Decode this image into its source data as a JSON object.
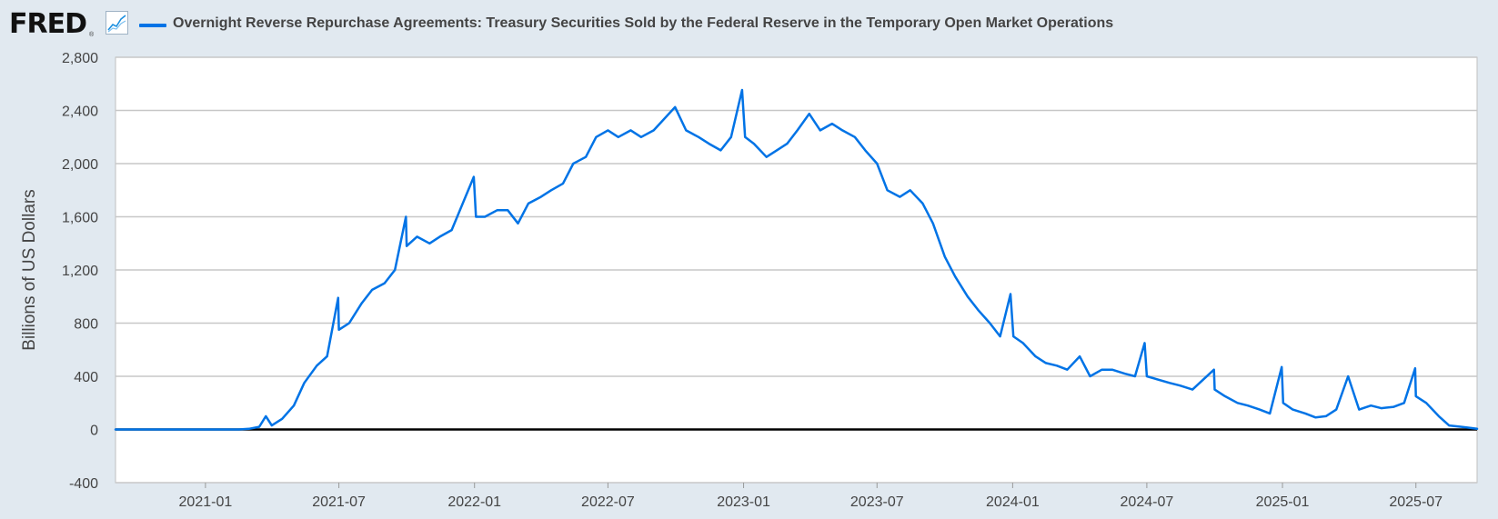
{
  "header": {
    "logo_text": "FRED",
    "logo_mark": "®",
    "graph_icon": "line-chart-icon",
    "legend_label": "Overnight Reverse Repurchase Agreements: Treasury Securities Sold by the Federal Reserve in the Temporary Open Market Operations"
  },
  "chart_data": {
    "type": "line",
    "title": "",
    "xlabel": "",
    "ylabel": "Billions of US Dollars",
    "ylim": [
      -400,
      2800
    ],
    "xlim": [
      "2020-09-01",
      "2025-09-22"
    ],
    "yticks": [
      -400,
      0,
      400,
      800,
      1200,
      1600,
      2000,
      2400,
      2800
    ],
    "ytick_labels": [
      "-400",
      "0",
      "400",
      "800",
      "1,200",
      "1,600",
      "2,000",
      "2,400",
      "2,800"
    ],
    "xticks": [
      "2021-01-01",
      "2021-07-01",
      "2022-01-01",
      "2022-07-01",
      "2023-01-01",
      "2023-07-01",
      "2024-01-01",
      "2024-07-01",
      "2025-01-01",
      "2025-07-01"
    ],
    "xtick_labels": [
      "2021-01",
      "2021-07",
      "2022-01",
      "2022-07",
      "2023-01",
      "2023-07",
      "2024-01",
      "2024-07",
      "2025-01",
      "2025-07"
    ],
    "grid": "horizontal",
    "legend": "top-left",
    "colors": {
      "series": "#0073e6",
      "grid": "#c7c7c7",
      "zero_line": "#000000",
      "plot_bg": "#ffffff",
      "page_bg": "#e1e9f0"
    },
    "series": [
      {
        "name": "Overnight Reverse Repurchase Agreements: Treasury Securities Sold by the Federal Reserve in the Temporary Open Market Operations",
        "points": [
          [
            "2020-09-01",
            0
          ],
          [
            "2021-01-01",
            0
          ],
          [
            "2021-02-15",
            0
          ],
          [
            "2021-03-01",
            5
          ],
          [
            "2021-03-15",
            20
          ],
          [
            "2021-03-24",
            100
          ],
          [
            "2021-04-01",
            30
          ],
          [
            "2021-04-15",
            80
          ],
          [
            "2021-05-01",
            180
          ],
          [
            "2021-05-15",
            350
          ],
          [
            "2021-06-01",
            480
          ],
          [
            "2021-06-15",
            550
          ],
          [
            "2021-06-30",
            990
          ],
          [
            "2021-07-01",
            750
          ],
          [
            "2021-07-15",
            800
          ],
          [
            "2021-08-01",
            950
          ],
          [
            "2021-08-15",
            1050
          ],
          [
            "2021-09-01",
            1100
          ],
          [
            "2021-09-15",
            1200
          ],
          [
            "2021-09-30",
            1600
          ],
          [
            "2021-10-01",
            1380
          ],
          [
            "2021-10-15",
            1450
          ],
          [
            "2021-11-01",
            1400
          ],
          [
            "2021-11-15",
            1450
          ],
          [
            "2021-12-01",
            1500
          ],
          [
            "2021-12-31",
            1900
          ],
          [
            "2022-01-03",
            1600
          ],
          [
            "2022-01-15",
            1600
          ],
          [
            "2022-02-01",
            1650
          ],
          [
            "2022-02-15",
            1650
          ],
          [
            "2022-03-01",
            1550
          ],
          [
            "2022-03-15",
            1700
          ],
          [
            "2022-04-01",
            1750
          ],
          [
            "2022-04-15",
            1800
          ],
          [
            "2022-05-01",
            1850
          ],
          [
            "2022-05-15",
            2000
          ],
          [
            "2022-06-01",
            2050
          ],
          [
            "2022-06-15",
            2200
          ],
          [
            "2022-07-01",
            2250
          ],
          [
            "2022-07-15",
            2200
          ],
          [
            "2022-08-01",
            2250
          ],
          [
            "2022-08-15",
            2200
          ],
          [
            "2022-09-01",
            2250
          ],
          [
            "2022-09-30",
            2425
          ],
          [
            "2022-10-15",
            2250
          ],
          [
            "2022-11-01",
            2200
          ],
          [
            "2022-11-15",
            2150
          ],
          [
            "2022-12-01",
            2100
          ],
          [
            "2022-12-15",
            2200
          ],
          [
            "2022-12-30",
            2554
          ],
          [
            "2023-01-03",
            2200
          ],
          [
            "2023-01-15",
            2150
          ],
          [
            "2023-02-01",
            2050
          ],
          [
            "2023-02-15",
            2100
          ],
          [
            "2023-03-01",
            2150
          ],
          [
            "2023-03-15",
            2250
          ],
          [
            "2023-03-31",
            2375
          ],
          [
            "2023-04-15",
            2250
          ],
          [
            "2023-05-01",
            2300
          ],
          [
            "2023-05-15",
            2250
          ],
          [
            "2023-06-01",
            2200
          ],
          [
            "2023-06-15",
            2100
          ],
          [
            "2023-07-01",
            2000
          ],
          [
            "2023-07-15",
            1800
          ],
          [
            "2023-08-01",
            1750
          ],
          [
            "2023-08-15",
            1800
          ],
          [
            "2023-09-01",
            1700
          ],
          [
            "2023-09-15",
            1550
          ],
          [
            "2023-10-01",
            1300
          ],
          [
            "2023-10-15",
            1150
          ],
          [
            "2023-11-01",
            1000
          ],
          [
            "2023-11-15",
            900
          ],
          [
            "2023-12-01",
            800
          ],
          [
            "2023-12-15",
            700
          ],
          [
            "2023-12-29",
            1019
          ],
          [
            "2024-01-02",
            700
          ],
          [
            "2024-01-15",
            650
          ],
          [
            "2024-02-01",
            550
          ],
          [
            "2024-02-15",
            500
          ],
          [
            "2024-03-01",
            480
          ],
          [
            "2024-03-15",
            450
          ],
          [
            "2024-04-01",
            550
          ],
          [
            "2024-04-15",
            400
          ],
          [
            "2024-05-01",
            450
          ],
          [
            "2024-05-15",
            450
          ],
          [
            "2024-06-01",
            420
          ],
          [
            "2024-06-15",
            400
          ],
          [
            "2024-06-28",
            650
          ],
          [
            "2024-07-01",
            400
          ],
          [
            "2024-08-01",
            350
          ],
          [
            "2024-08-15",
            330
          ],
          [
            "2024-09-01",
            300
          ],
          [
            "2024-09-30",
            450
          ],
          [
            "2024-10-01",
            300
          ],
          [
            "2024-10-15",
            250
          ],
          [
            "2024-11-01",
            200
          ],
          [
            "2024-11-15",
            180
          ],
          [
            "2024-12-01",
            150
          ],
          [
            "2024-12-15",
            120
          ],
          [
            "2024-12-31",
            470
          ],
          [
            "2025-01-02",
            200
          ],
          [
            "2025-01-15",
            150
          ],
          [
            "2025-02-01",
            120
          ],
          [
            "2025-02-15",
            90
          ],
          [
            "2025-03-01",
            100
          ],
          [
            "2025-03-15",
            150
          ],
          [
            "2025-03-31",
            400
          ],
          [
            "2025-04-15",
            150
          ],
          [
            "2025-05-01",
            180
          ],
          [
            "2025-05-15",
            160
          ],
          [
            "2025-06-01",
            170
          ],
          [
            "2025-06-15",
            200
          ],
          [
            "2025-06-30",
            460
          ],
          [
            "2025-07-01",
            250
          ],
          [
            "2025-07-15",
            200
          ],
          [
            "2025-08-01",
            100
          ],
          [
            "2025-08-15",
            30
          ],
          [
            "2025-09-01",
            20
          ],
          [
            "2025-09-15",
            10
          ],
          [
            "2025-09-22",
            5
          ]
        ]
      }
    ]
  }
}
